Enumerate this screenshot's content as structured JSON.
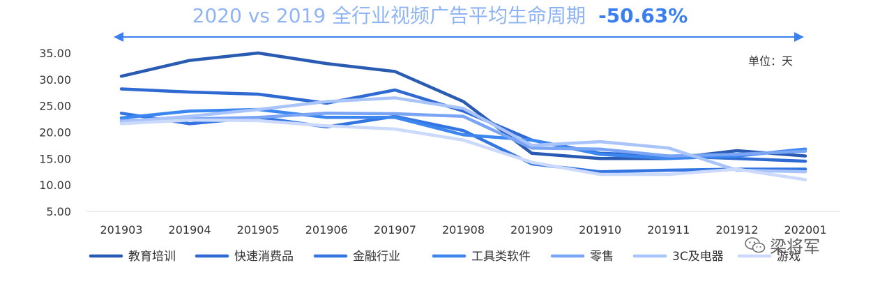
{
  "chart_data": {
    "type": "line",
    "title": "2020 vs 2019 全行业视频广告平均生命周期",
    "title_change": "-50.63%",
    "unit_label": "单位：天",
    "xlabel": "",
    "ylabel": "",
    "ylim": [
      5,
      35
    ],
    "ytick_labels": [
      "5.00",
      "10.00",
      "15.00",
      "20.00",
      "25.00",
      "30.00",
      "35.00"
    ],
    "categories": [
      "201903",
      "201904",
      "201905",
      "201906",
      "201907",
      "201908",
      "201909",
      "201910",
      "201911",
      "201912",
      "202001"
    ],
    "legend_position": "bottom",
    "grid": false,
    "series": [
      {
        "name": "教育培训",
        "color": "#2a5bb3",
        "values": [
          30.6,
          33.6,
          35.0,
          33.0,
          31.5,
          25.8,
          16.0,
          15.0,
          15.0,
          16.5,
          15.5
        ]
      },
      {
        "name": "快速消费品",
        "color": "#2e6ad1",
        "values": [
          28.2,
          27.6,
          27.2,
          25.5,
          28.0,
          24.0,
          18.5,
          16.0,
          15.5,
          15.0,
          14.5
        ]
      },
      {
        "name": "金融行业",
        "color": "#3475e2",
        "values": [
          23.6,
          21.6,
          22.8,
          21.0,
          23.0,
          20.3,
          14.0,
          12.5,
          12.8,
          13.0,
          13.0
        ]
      },
      {
        "name": "工具类软件",
        "color": "#3c86f0",
        "values": [
          22.7,
          24.0,
          24.3,
          22.8,
          22.8,
          19.5,
          18.5,
          15.8,
          15.0,
          15.5,
          16.8
        ]
      },
      {
        "name": "零售",
        "color": "#7aa5f5",
        "values": [
          22.2,
          22.5,
          22.8,
          23.6,
          23.5,
          23.0,
          17.0,
          16.8,
          15.5,
          15.8,
          16.4
        ]
      },
      {
        "name": "3C及电器",
        "color": "#a9c4fa",
        "values": [
          22.0,
          23.0,
          24.3,
          25.8,
          26.5,
          24.5,
          17.5,
          18.2,
          17.0,
          12.8,
          12.5
        ]
      },
      {
        "name": "游戏",
        "color": "#cad9fc",
        "values": [
          21.6,
          22.3,
          22.2,
          21.2,
          20.6,
          18.5,
          14.3,
          12.0,
          12.0,
          13.0,
          11.0
        ]
      }
    ]
  },
  "watermark": {
    "text": "梁将军",
    "icon": "wechat-icon"
  }
}
